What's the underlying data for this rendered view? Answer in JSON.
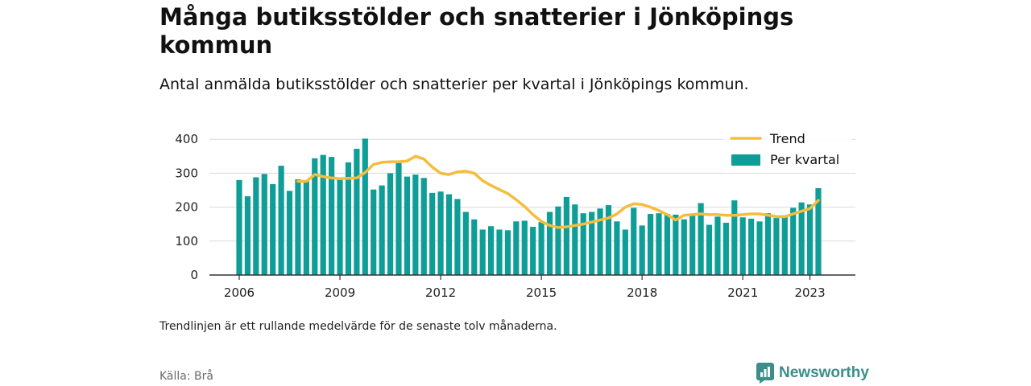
{
  "title": "Många butiksstölder och snatterier i Jönköpings kommun",
  "subtitle": "Antal anmälda butiksstölder och snatterier per kvartal i Jönköpings kommun.",
  "note": "Trendlinjen är ett rullande medelvärde för de senaste tolv månaderna.",
  "source": "Källa: Brå",
  "brand": "Newsworthy",
  "colors": {
    "bars": "#0f9e97",
    "trend": "#f5bd3c",
    "brand": "#3a8f8a"
  },
  "chart_data": {
    "type": "bar",
    "title": "",
    "xlabel": "",
    "ylabel": "",
    "ylim": [
      0,
      420
    ],
    "yticks": [
      0,
      100,
      200,
      300,
      400
    ],
    "xticks": [
      "2006",
      "2009",
      "2012",
      "2015",
      "2018",
      "2021",
      "2023"
    ],
    "grid": true,
    "legend_position": "top-right",
    "x_start": "2006 Q1",
    "x_end": "2023 Q2",
    "legend": [
      "Trend",
      "Per kvartal"
    ],
    "series": [
      {
        "name": "Per kvartal",
        "type": "bar",
        "values": [
          280,
          232,
          288,
          298,
          268,
          322,
          248,
          282,
          276,
          344,
          354,
          348,
          288,
          332,
          372,
          402,
          252,
          264,
          300,
          330,
          290,
          296,
          286,
          242,
          246,
          238,
          224,
          186,
          164,
          134,
          144,
          134,
          132,
          158,
          160,
          142,
          156,
          186,
          202,
          230,
          208,
          182,
          186,
          196,
          206,
          158,
          134,
          198,
          146,
          180,
          182,
          180,
          178,
          164,
          180,
          212,
          148,
          172,
          154,
          220,
          170,
          166,
          158,
          182,
          168,
          176,
          198,
          214,
          208,
          256
        ]
      },
      {
        "name": "Trend",
        "type": "line",
        "values": [
          null,
          null,
          null,
          null,
          null,
          null,
          null,
          276,
          276,
          296,
          290,
          286,
          284,
          285,
          286,
          302,
          326,
          332,
          334,
          334,
          336,
          350,
          342,
          318,
          300,
          296,
          304,
          306,
          300,
          278,
          264,
          252,
          240,
          222,
          202,
          178,
          158,
          146,
          140,
          142,
          146,
          150,
          156,
          162,
          168,
          180,
          200,
          210,
          208,
          200,
          190,
          178,
          162,
          176,
          178,
          180,
          178,
          178,
          176,
          176,
          178,
          180,
          180,
          176,
          172,
          172,
          180,
          188,
          196,
          220
        ]
      }
    ]
  }
}
